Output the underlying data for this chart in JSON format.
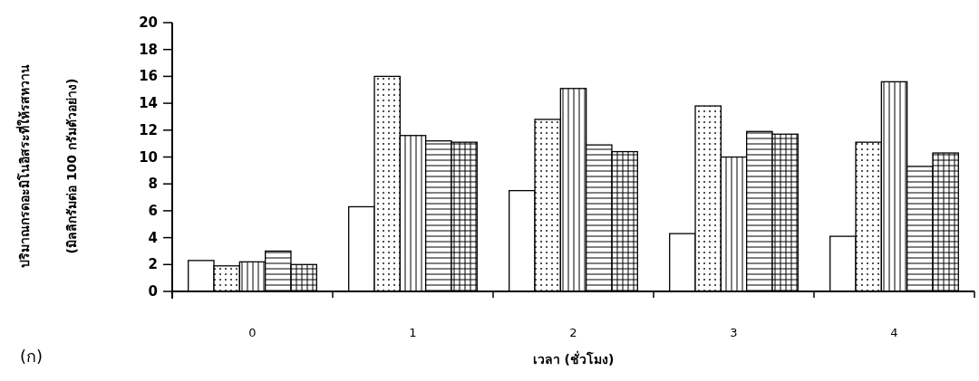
{
  "chart_data": {
    "type": "bar",
    "xlabel": "เวลา (ชั่วโมง)",
    "ylabel": "ปริมาณกรดอะมิโนอิสระที่ให้รสหวาน\n(มิลลิกรัมต่อ 100 กรัมตัวอย่าง)",
    "annotations": [
      "(ก)"
    ],
    "categories": [
      "0",
      "1",
      "2",
      "3",
      "4"
    ],
    "series": [
      {
        "color": "#000000",
        "values": [
          2.3,
          6.3,
          7.5,
          4.3,
          4.1
        ]
      },
      {
        "color": "#000000",
        "values": [
          1.9,
          16.0,
          12.8,
          13.8,
          11.1
        ]
      },
      {
        "color": "#000000",
        "values": [
          2.2,
          11.6,
          15.1,
          10.0,
          15.6
        ]
      },
      {
        "color": "#000000",
        "values": [
          3.0,
          11.2,
          10.9,
          11.9,
          9.3
        ]
      },
      {
        "color": "#000000",
        "values": [
          2.0,
          11.1,
          10.4,
          11.7,
          10.3
        ]
      }
    ],
    "ylim": [
      0,
      20
    ],
    "yticks": [
      0,
      2,
      4,
      6,
      8,
      10,
      12,
      14,
      16,
      18,
      20
    ],
    "grid": false
  }
}
